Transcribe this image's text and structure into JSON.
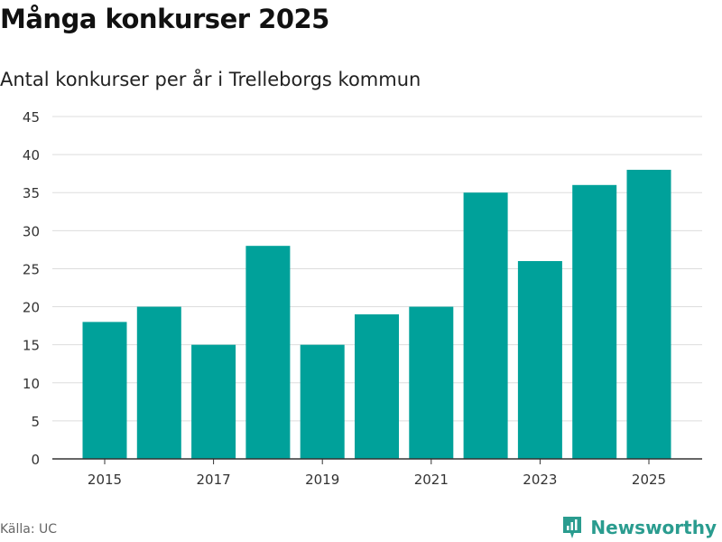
{
  "header": {
    "title": "Många konkurser 2025",
    "subtitle": "Antal konkurser per år i Trelleborgs kommun"
  },
  "footer": {
    "source": "Källa: UC",
    "brand": "Newsworthy",
    "brand_icon": "newsworthy-logo-icon"
  },
  "colors": {
    "bar": "#00a19a",
    "grid": "#dddddd",
    "axis": "#333333",
    "brand": "#2a9c8f"
  },
  "chart_data": {
    "type": "bar",
    "categories": [
      "2015",
      "2016",
      "2017",
      "2018",
      "2019",
      "2020",
      "2021",
      "2022",
      "2023",
      "2024",
      "2025"
    ],
    "values": [
      18,
      20,
      15,
      28,
      15,
      19,
      20,
      35,
      26,
      36,
      38
    ],
    "x_tick_labels": [
      "2015",
      "2017",
      "2019",
      "2021",
      "2023",
      "2025"
    ],
    "y_ticks": [
      0,
      5,
      10,
      15,
      20,
      25,
      30,
      35,
      40,
      45
    ],
    "ylim": [
      0,
      45
    ],
    "grid": true,
    "legend": "none"
  }
}
